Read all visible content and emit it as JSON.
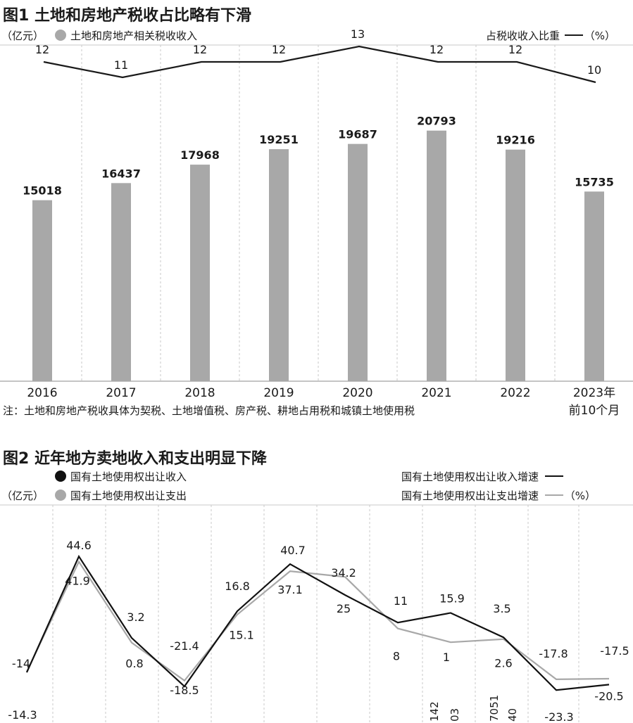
{
  "figure1": {
    "title": "图1 土地和房地产税收占比略有下滑",
    "unit_left": "（亿元）",
    "legend_bar": "土地和房地产相关税收收入",
    "legend_line": "占税收收入比重",
    "unit_right": "（%）",
    "note": "注：土地和房地产税收具体为契税、土地增值税、房产税、耕地占用税和城镇土地使用税",
    "colors": {
      "bar": "#a8a8a8",
      "line": "#1a1a1a"
    }
  },
  "figure2": {
    "title": "图2 近年地方卖地收入和支出明显下降",
    "unit_left": "（亿元）",
    "legend_income": "国有土地使用权出让收入",
    "legend_expense": "国有土地使用权出让支出",
    "legend_income_growth": "国有土地使用权出让收入增速",
    "legend_expense_growth": "国有土地使用权出让支出增速",
    "unit_right": "（%）",
    "colors": {
      "income": "#111111",
      "expense": "#a8a8a8"
    }
  },
  "chart_data": [
    {
      "type": "bar",
      "categories": [
        "2016",
        "2017",
        "2018",
        "2019",
        "2020",
        "2021",
        "2022",
        "2023年前10个月"
      ],
      "series": [
        {
          "name": "土地和房地产相关税收收入",
          "values": [
            15018,
            16437,
            17968,
            19251,
            19687,
            20793,
            19216,
            15735
          ]
        },
        {
          "name": "占税收收入比重",
          "type": "line",
          "values": [
            12,
            11,
            12,
            12,
            13,
            12,
            12,
            10
          ]
        }
      ],
      "title": "图1 土地和房地产税收占比略有下滑",
      "ylabel": "亿元",
      "y2label": "%",
      "ylim": [
        0,
        30000
      ],
      "y2lim": [
        0,
        16
      ],
      "grid": "vertical dashed",
      "legend": "top"
    },
    {
      "type": "line",
      "series": [
        {
          "name": "国有土地使用权出让收入增速",
          "values": [
            -14.3,
            44.6,
            3.2,
            -21.4,
            16.8,
            40.7,
            25,
            11,
            15.9,
            3.5,
            -23.3,
            -20.5
          ]
        },
        {
          "name": "国有土地使用权出让支出增速",
          "values": [
            -14,
            41.9,
            0.8,
            -18.5,
            15.1,
            37.1,
            34.2,
            8,
            1,
            2.6,
            -17.8,
            -17.5
          ]
        }
      ],
      "title": "图2 近年地方卖地收入和支出明显下降",
      "ylabel": "%",
      "ylim": [
        -30,
        55
      ],
      "grid": "vertical dashed",
      "legend": "top",
      "partial_labels": [
        "142",
        "03",
        "7051",
        "40"
      ]
    }
  ]
}
